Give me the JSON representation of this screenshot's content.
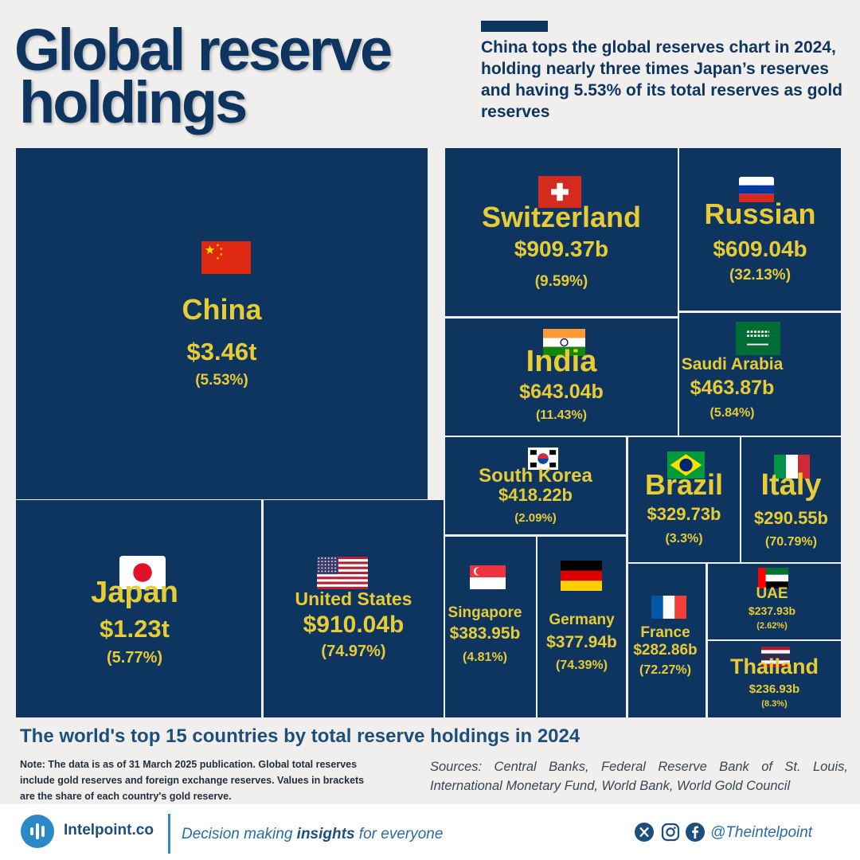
{
  "header": {
    "title_line1": "Global reserve",
    "title_line2": "holdings",
    "subtitle": "China tops the global reserves chart in 2024, holding nearly three times Japan’s reserves and having 5.53% of its total reserves as gold reserves"
  },
  "chart_data": {
    "type": "treemap",
    "title": "The world's top 15 countries by total reserve holdings in 2024",
    "value_unit": "USD",
    "bracket_meaning": "share of gold reserve (%)",
    "tiles": [
      {
        "country": "China",
        "value_label": "$3.46t",
        "share_label": "(5.53%)",
        "value": 3460,
        "gold_share": 5.53,
        "flag": "china-flag"
      },
      {
        "country": "Japan",
        "value_label": "$1.23t",
        "share_label": "(5.77%)",
        "value": 1230,
        "gold_share": 5.77,
        "flag": "japan-flag"
      },
      {
        "country": "United States",
        "value_label": "$910.04b",
        "share_label": "(74.97%)",
        "value": 910.04,
        "gold_share": 74.97,
        "flag": "us-flag"
      },
      {
        "country": "Switzerland",
        "value_label": "$909.37b",
        "share_label": "(9.59%)",
        "value": 909.37,
        "gold_share": 9.59,
        "flag": "switzerland-flag"
      },
      {
        "country": "India",
        "value_label": "$643.04b",
        "share_label": "(11.43%)",
        "value": 643.04,
        "gold_share": 11.43,
        "flag": "india-flag"
      },
      {
        "country": "Russian",
        "value_label": "$609.04b",
        "share_label": "(32.13%)",
        "value": 609.04,
        "gold_share": 32.13,
        "flag": "russia-flag"
      },
      {
        "country": "Saudi Arabia",
        "value_label": "$463.87b",
        "share_label": "(5.84%)",
        "value": 463.87,
        "gold_share": 5.84,
        "flag": "saudi-arabia-flag"
      },
      {
        "country": "South Korea",
        "value_label": "$418.22b",
        "share_label": "(2.09%)",
        "value": 418.22,
        "gold_share": 2.09,
        "flag": "south-korea-flag"
      },
      {
        "country": "Singapore",
        "value_label": "$383.95b",
        "share_label": "(4.81%)",
        "value": 383.95,
        "gold_share": 4.81,
        "flag": "singapore-flag"
      },
      {
        "country": "Germany",
        "value_label": "$377.94b",
        "share_label": "(74.39%)",
        "value": 377.94,
        "gold_share": 74.39,
        "flag": "germany-flag"
      },
      {
        "country": "Brazil",
        "value_label": "$329.73b",
        "share_label": "(3.3%)",
        "value": 329.73,
        "gold_share": 3.3,
        "flag": "brazil-flag"
      },
      {
        "country": "Italy",
        "value_label": "$290.55b",
        "share_label": "(70.79%)",
        "value": 290.55,
        "gold_share": 70.79,
        "flag": "italy-flag"
      },
      {
        "country": "France",
        "value_label": "$282.86b",
        "share_label": "(72.27%)",
        "value": 282.86,
        "gold_share": 72.27,
        "flag": "france-flag"
      },
      {
        "country": "UAE",
        "value_label": "$237.93b",
        "share_label": "(2.62%)",
        "value": 237.93,
        "gold_share": 2.62,
        "flag": "uae-flag"
      },
      {
        "country": "Thailand",
        "value_label": "$236.93b",
        "share_label": "(8.3%)",
        "value": 236.93,
        "gold_share": 8.3,
        "flag": "thailand-flag"
      }
    ]
  },
  "caption": "The world's top 15 countries by total reserve holdings in 2024",
  "note": "Note: The data is as of 31 March 2025 publication. Global total reserves include gold reserves and foreign exchange reserves. Values in brackets are the share of each country's gold reserve.",
  "sources": "Sources: Central Banks, Federal Reserve Bank of St. Louis, International Monetary Fund, World Bank, World Gold Council",
  "footer": {
    "brand": "Intelpoint.co",
    "tagline_pre": "Decision making ",
    "tagline_bold": "insights",
    "tagline_post": " for everyone",
    "handle": "@Theintelpoint"
  },
  "colors": {
    "tile_bg": "#0e3560",
    "tile_text": "#e8cc35",
    "title": "#0e3560",
    "accent": "#2a89c6"
  }
}
